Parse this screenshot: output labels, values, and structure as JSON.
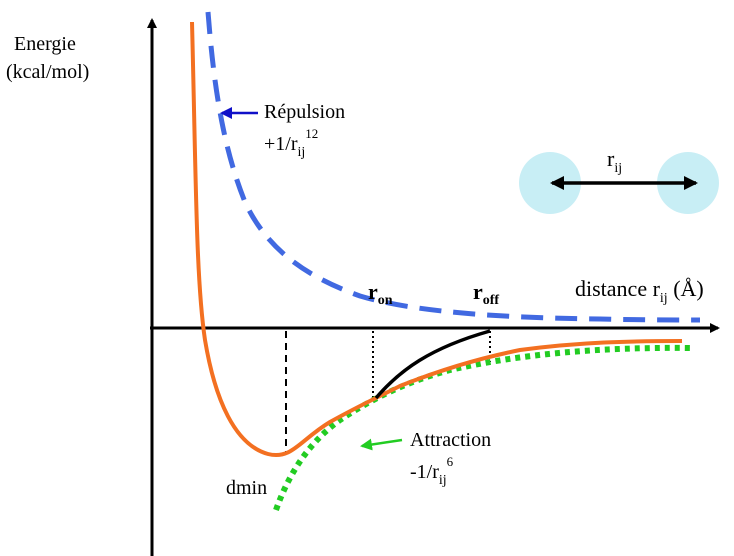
{
  "axis": {
    "y_label_line1": "Energie",
    "y_label_line2": "(kcal/mol)",
    "x_label_main": "distance r",
    "x_label_sub": "ij",
    "x_label_unit": " (Å)"
  },
  "repulsion": {
    "label": "Répulsion",
    "formula_main": "+1/r",
    "formula_sub": "ij",
    "formula_sup": "12",
    "color": "#4169e1"
  },
  "attraction": {
    "label": "Attraction",
    "formula_main": "-1/r",
    "formula_sub": "ij",
    "formula_sup": "6",
    "color": "#22cc22"
  },
  "total_curve": {
    "color": "#f37021"
  },
  "switch_curve": {
    "color": "#000000"
  },
  "markers": {
    "r_on_main": "r",
    "r_on_sub": "on",
    "r_off_main": "r",
    "r_off_sub": "off",
    "dmin": "dmin"
  },
  "inset": {
    "label_main": "r",
    "label_sub": "ij",
    "atom_color": "#c8eef5"
  }
}
